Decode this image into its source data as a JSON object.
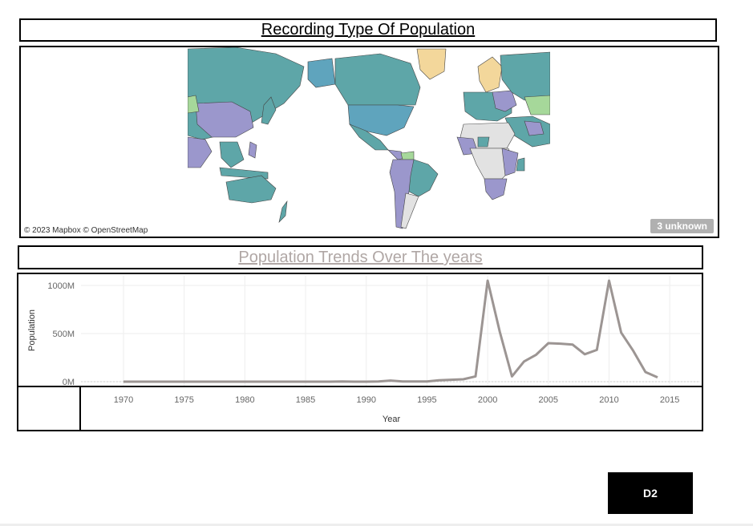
{
  "title": "Recording Type Of Population",
  "map": {
    "attribution": "© 2023 Mapbox © OpenStreetMap",
    "unknown_badge": "3 unknown",
    "colors": {
      "teal": "#5ea6a8",
      "blue": "#5fa4bd",
      "purple": "#9b97cc",
      "green": "#a6d89a",
      "yellow": "#f3d79b",
      "gray": "#e2e2e2"
    }
  },
  "subtitle": "Population Trends Over The years",
  "chart_data": {
    "type": "line",
    "xlabel": "Year",
    "ylabel": "Population",
    "x_ticks": [
      1970,
      1975,
      1980,
      1985,
      1990,
      1995,
      2000,
      2005,
      2010,
      2015
    ],
    "y_ticks": [
      "0M",
      "500M",
      "1000M"
    ],
    "xlim": [
      1966.5,
      2017.5
    ],
    "ylim": [
      0,
      1000
    ],
    "line_color": "#9c9593",
    "x": [
      1970,
      1975,
      1980,
      1985,
      1987,
      1988,
      1989,
      1990,
      1991,
      1992,
      1993,
      1994,
      1995,
      1996,
      1997,
      1998,
      1999,
      2000,
      2001,
      2002,
      2003,
      2004,
      2005,
      2006,
      2007,
      2008,
      2009,
      2010,
      2011,
      2012,
      2013,
      2014
    ],
    "y": [
      0,
      0,
      0,
      0,
      0,
      2,
      0,
      0,
      2,
      12,
      2,
      2,
      2,
      15,
      20,
      25,
      55,
      1050,
      520,
      55,
      210,
      280,
      400,
      395,
      385,
      285,
      330,
      1050,
      510,
      320,
      100,
      45
    ]
  },
  "badge": "D2"
}
